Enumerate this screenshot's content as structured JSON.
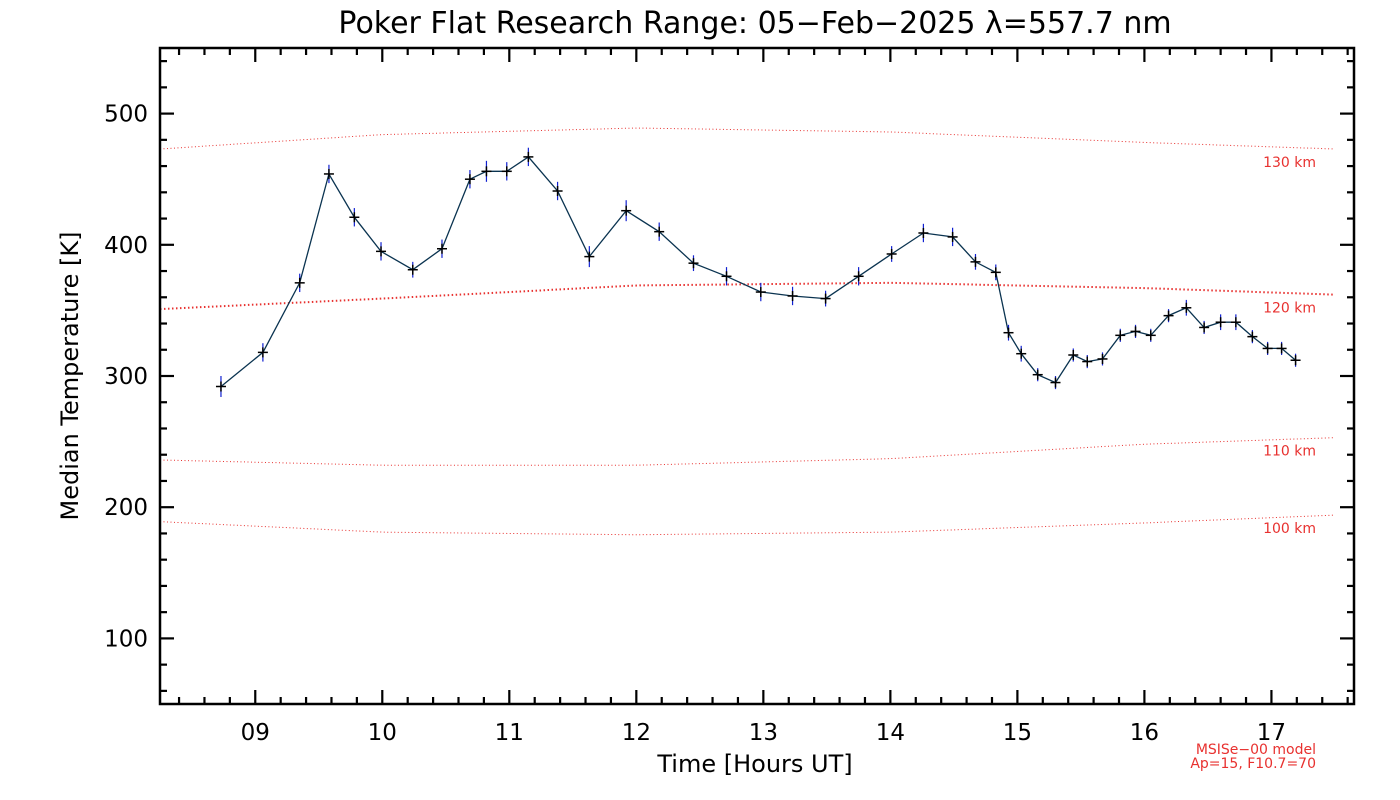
{
  "chart_data": {
    "type": "line",
    "title": "Poker Flat Research Range: 05−Feb−2025 λ=557.7 nm",
    "xlabel": "Time [Hours UT]",
    "ylabel": "Median Temperature [K]",
    "xlim": [
      8.25,
      17.65
    ],
    "ylim": [
      50,
      550
    ],
    "x_ticks": [
      9,
      10,
      11,
      12,
      13,
      14,
      15,
      16,
      17
    ],
    "x_tick_labels": [
      "09",
      "10",
      "11",
      "12",
      "13",
      "14",
      "15",
      "16",
      "17"
    ],
    "y_ticks": [
      100,
      200,
      300,
      400,
      500
    ],
    "y_tick_labels": [
      "100",
      "200",
      "300",
      "400",
      "500"
    ],
    "grid": false,
    "colors": {
      "series": "#0a3350",
      "marker": "#000000",
      "error": "#1020d0",
      "model": "#e8312f"
    },
    "series": [
      {
        "x": [
          8.73,
          9.06,
          9.35,
          9.58,
          9.78,
          9.99,
          10.24,
          10.47,
          10.69,
          10.82,
          10.98,
          11.15,
          11.38,
          11.63,
          11.92,
          12.18,
          12.45,
          12.71,
          12.98,
          13.23,
          13.49,
          13.75,
          14.01,
          14.26,
          14.49,
          14.67,
          14.83,
          14.93,
          15.03,
          15.16,
          15.3,
          15.44,
          15.55,
          15.67,
          15.81,
          15.93,
          16.05,
          16.19,
          16.33,
          16.47,
          16.6,
          16.72,
          16.85,
          16.97,
          17.08,
          17.19
        ],
        "values": [
          292,
          318,
          371,
          454,
          421,
          395,
          381,
          397,
          450,
          456,
          456,
          467,
          441,
          391,
          426,
          410,
          386,
          376,
          364,
          361,
          359,
          376,
          393,
          409,
          406,
          387,
          379,
          333,
          317,
          301,
          295,
          316,
          311,
          313,
          331,
          334,
          331,
          346,
          352,
          337,
          341,
          341,
          330,
          321,
          321,
          312
        ],
        "errors": [
          8,
          7,
          7,
          7,
          7,
          7,
          6,
          7,
          7,
          8,
          7,
          7,
          7,
          8,
          8,
          7,
          6,
          7,
          7,
          7,
          6,
          7,
          6,
          7,
          7,
          6,
          6,
          6,
          6,
          5,
          5,
          5,
          5,
          5,
          5,
          5,
          5,
          5,
          6,
          5,
          6,
          6,
          5,
          5,
          5,
          5
        ]
      }
    ],
    "model_curves": [
      {
        "label": "130 km",
        "x": [
          8.25,
          10.0,
          12.0,
          14.0,
          16.0,
          17.5
        ],
        "values": [
          473,
          484,
          489,
          486,
          478,
          473
        ]
      },
      {
        "label": "120 km",
        "x": [
          8.25,
          10.0,
          12.0,
          14.0,
          16.0,
          17.5
        ],
        "values": [
          351,
          359,
          369,
          371,
          367,
          362
        ]
      },
      {
        "label": "110 km",
        "x": [
          8.25,
          10.0,
          12.0,
          14.0,
          16.0,
          17.5
        ],
        "values": [
          236,
          232,
          232,
          237,
          248,
          253
        ]
      },
      {
        "label": "100 km",
        "x": [
          8.25,
          10.0,
          12.0,
          14.0,
          16.0,
          17.5
        ],
        "values": [
          189,
          181,
          179,
          181,
          188,
          194
        ]
      }
    ],
    "model_note": [
      "MSISe−00 model",
      "Ap=15, F10.7=70"
    ]
  }
}
